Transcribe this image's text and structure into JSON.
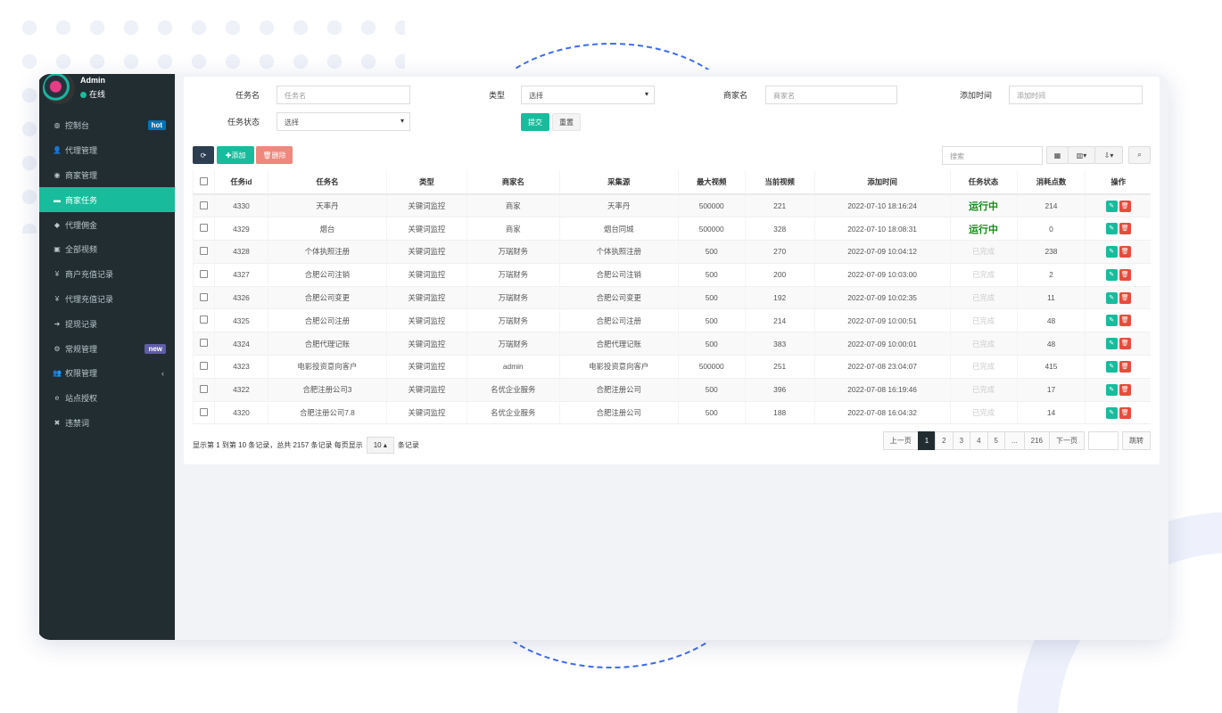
{
  "user": {
    "name": "Admin",
    "status": "在线"
  },
  "sidebar": {
    "items": [
      {
        "label": "控制台",
        "icon": "dashboard-icon",
        "badge": "hot",
        "badge_color": "#0073b7"
      },
      {
        "label": "代理管理",
        "icon": "user-plus-icon"
      },
      {
        "label": "商家管理",
        "icon": "eye-icon"
      },
      {
        "label": "商家任务",
        "icon": "card-icon",
        "active": true
      },
      {
        "label": "代理佣金",
        "icon": "diamond-icon"
      },
      {
        "label": "全部视频",
        "icon": "file-image-icon"
      },
      {
        "label": "商户充值记录",
        "icon": "yen-icon"
      },
      {
        "label": "代理充值记录",
        "icon": "yen-icon"
      },
      {
        "label": "提现记录",
        "icon": "sign-in-icon"
      },
      {
        "label": "常规管理",
        "icon": "cogs-icon",
        "badge": "new",
        "badge_color": "#605ca8"
      },
      {
        "label": "权限管理",
        "icon": "group-icon",
        "chevron": "‹"
      },
      {
        "label": "站点授权",
        "icon": "ie-icon"
      },
      {
        "label": "违禁词",
        "icon": "times-icon"
      }
    ]
  },
  "filters": {
    "task_name": {
      "label": "任务名",
      "placeholder": "任务名"
    },
    "type": {
      "label": "类型",
      "value": "选择"
    },
    "merchant": {
      "label": "商家名",
      "placeholder": "商家名"
    },
    "add_time": {
      "label": "添加时间",
      "placeholder": "添加时间"
    },
    "status": {
      "label": "任务状态",
      "value": "选择"
    },
    "submit": "提交",
    "reset": "重置"
  },
  "toolbar": {
    "add": "添加",
    "delete": "删除",
    "search_placeholder": "搜索"
  },
  "table": {
    "columns": [
      "任务id",
      "任务名",
      "类型",
      "商家名",
      "采集源",
      "最大视频",
      "当前视频",
      "添加时间",
      "任务状态",
      "消耗点数",
      "操作"
    ],
    "rows": [
      [
        "4330",
        "天率丹",
        "关键词监控",
        "商家",
        "天率丹",
        "500000",
        "221",
        "2022-07-10 18:16:24",
        "运行中",
        "214"
      ],
      [
        "4329",
        "烟台",
        "关键词监控",
        "商家",
        "烟台同城",
        "500000",
        "328",
        "2022-07-10 18:08:31",
        "运行中",
        "0"
      ],
      [
        "4328",
        "个体执照注册",
        "关键词监控",
        "万瑞财务",
        "个体执照注册",
        "500",
        "270",
        "2022-07-09 10:04:12",
        "已完成",
        "238"
      ],
      [
        "4327",
        "合肥公司注销",
        "关键词监控",
        "万瑞财务",
        "合肥公司注销",
        "500",
        "200",
        "2022-07-09 10:03:00",
        "已完成",
        "2"
      ],
      [
        "4326",
        "合肥公司变更",
        "关键词监控",
        "万瑞财务",
        "合肥公司变更",
        "500",
        "192",
        "2022-07-09 10:02:35",
        "已完成",
        "11"
      ],
      [
        "4325",
        "合肥公司注册",
        "关键词监控",
        "万瑞财务",
        "合肥公司注册",
        "500",
        "214",
        "2022-07-09 10:00:51",
        "已完成",
        "48"
      ],
      [
        "4324",
        "合肥代理记账",
        "关键词监控",
        "万瑞财务",
        "合肥代理记账",
        "500",
        "383",
        "2022-07-09 10:00:01",
        "已完成",
        "48"
      ],
      [
        "4323",
        "电影投资意向客户",
        "关键词监控",
        "admin",
        "电影投资意向客户",
        "500000",
        "251",
        "2022-07-08 23:04:07",
        "已完成",
        "415"
      ],
      [
        "4322",
        "合肥注册公司3",
        "关键词监控",
        "名优企业服务",
        "合肥注册公司",
        "500",
        "396",
        "2022-07-08 16:19:46",
        "已完成",
        "17"
      ],
      [
        "4320",
        "合肥注册公司7.8",
        "关键词监控",
        "名优企业服务",
        "合肥注册公司",
        "500",
        "188",
        "2022-07-08 16:04:32",
        "已完成",
        "14"
      ]
    ]
  },
  "footer": {
    "summary": "显示第 1 到第 10 条记录，总共 2157 条记录 每页显示",
    "page_size": "10 ▴",
    "suffix": "条记录"
  },
  "pagination": {
    "prev": "上一页",
    "pages": [
      "1",
      "2",
      "3",
      "4",
      "5",
      "...",
      "216"
    ],
    "current": "1",
    "next": "下一页",
    "jump": "跳转"
  },
  "colors": {
    "sidebar": "#222d32",
    "accent": "#18bc9c",
    "danger": "#e74c3c",
    "running": "#18891a"
  }
}
